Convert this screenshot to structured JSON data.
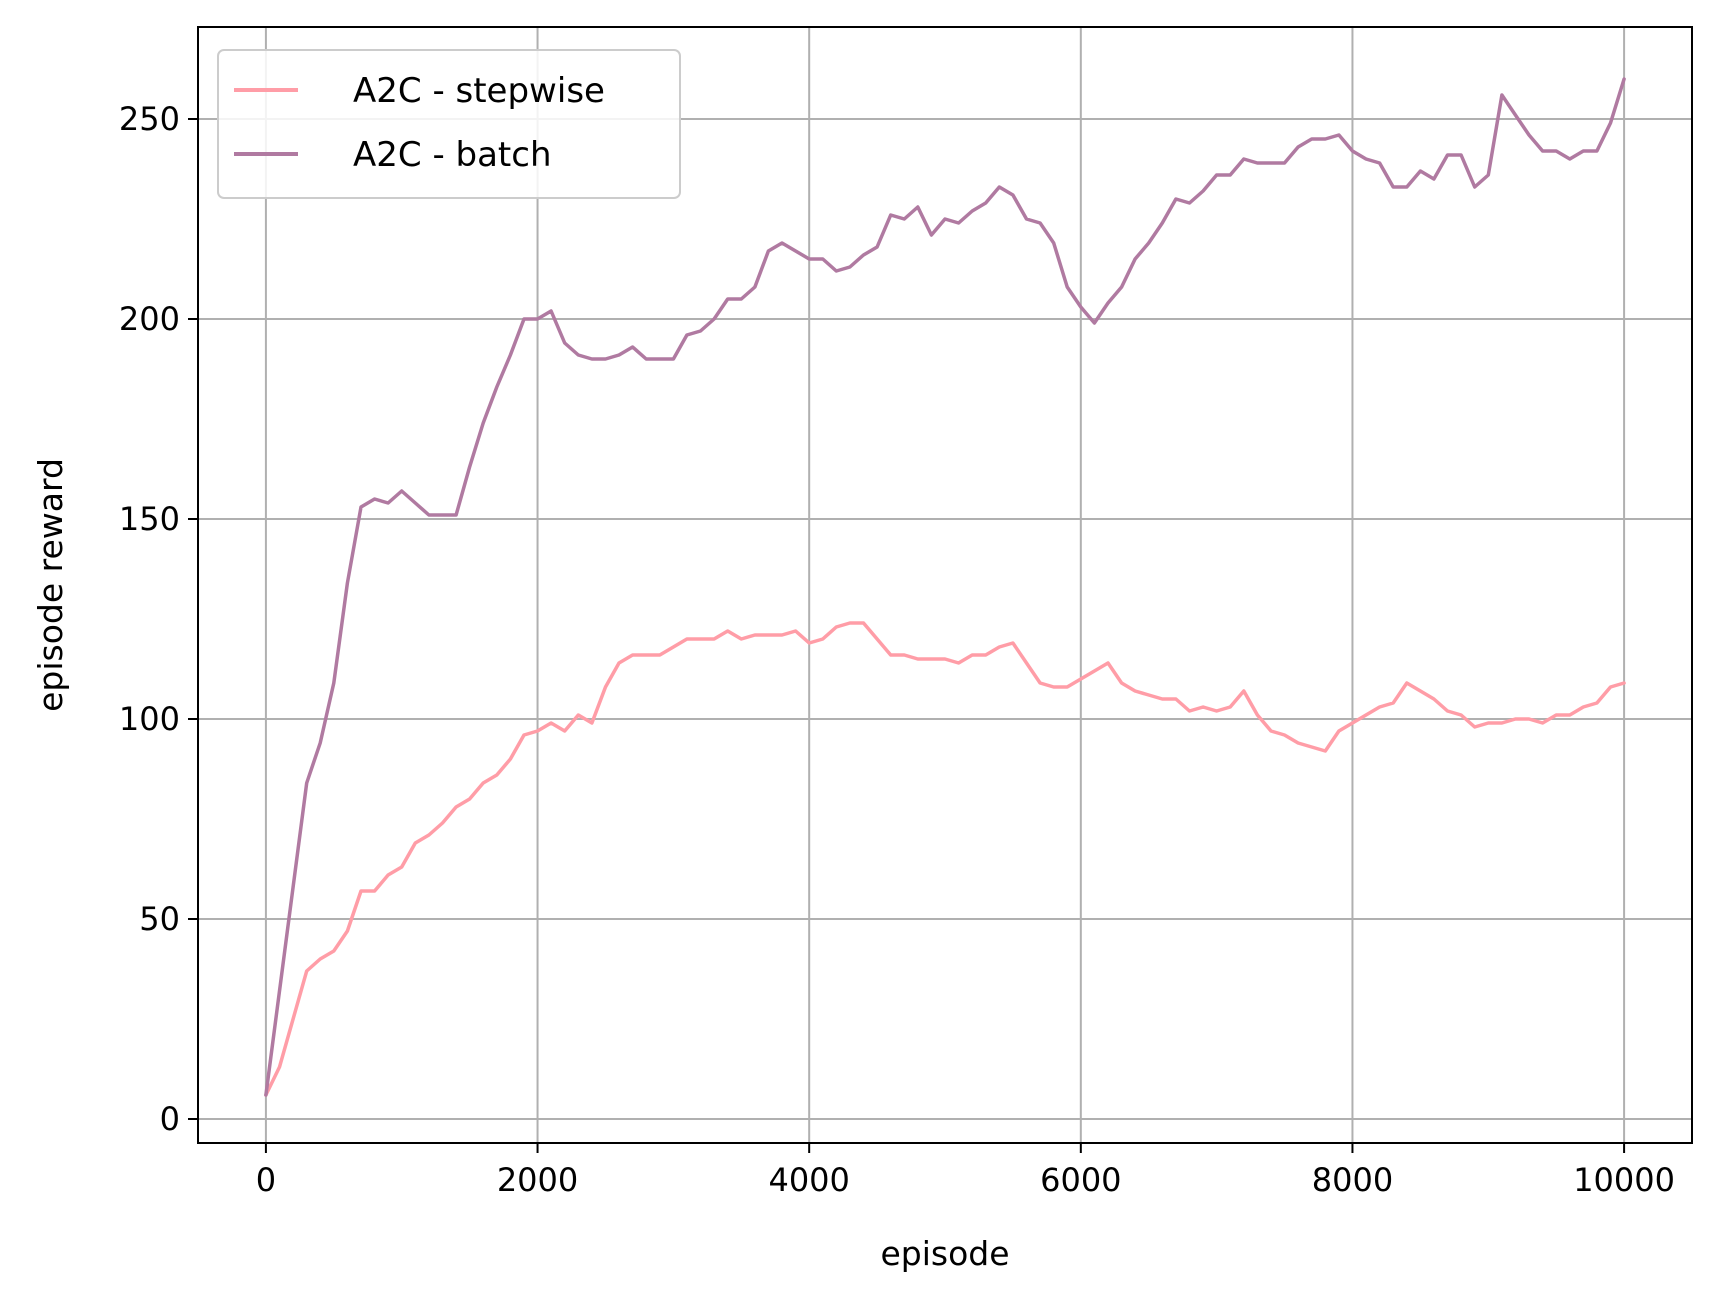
{
  "chart_data": {
    "type": "line",
    "title": "",
    "xlabel": "episode",
    "ylabel": "episode reward",
    "xlim": [
      -500,
      10500
    ],
    "ylim": [
      -6,
      273
    ],
    "xticks": [
      0,
      2000,
      4000,
      6000,
      8000,
      10000
    ],
    "yticks": [
      0,
      50,
      100,
      150,
      200,
      250
    ],
    "grid": true,
    "legend_position": "upper-left",
    "x": [
      0,
      100,
      200,
      300,
      400,
      500,
      600,
      700,
      800,
      900,
      1000,
      1100,
      1200,
      1300,
      1400,
      1500,
      1600,
      1700,
      1800,
      1900,
      2000,
      2100,
      2200,
      2300,
      2400,
      2500,
      2600,
      2700,
      2800,
      2900,
      3000,
      3100,
      3200,
      3300,
      3400,
      3500,
      3600,
      3700,
      3800,
      3900,
      4000,
      4100,
      4200,
      4300,
      4400,
      4500,
      4600,
      4700,
      4800,
      4900,
      5000,
      5100,
      5200,
      5300,
      5400,
      5500,
      5600,
      5700,
      5800,
      5900,
      6000,
      6100,
      6200,
      6300,
      6400,
      6500,
      6600,
      6700,
      6800,
      6900,
      7000,
      7100,
      7200,
      7300,
      7400,
      7500,
      7600,
      7700,
      7800,
      7900,
      8000,
      8100,
      8200,
      8300,
      8400,
      8500,
      8600,
      8700,
      8800,
      8900,
      9000,
      9100,
      9200,
      9300,
      9400,
      9500,
      9600,
      9700,
      9800,
      9900,
      10000
    ],
    "series": [
      {
        "name": "A2C - stepwise",
        "color": "#ff9da7",
        "values": [
          6,
          13,
          25,
          37,
          40,
          42,
          47,
          57,
          57,
          61,
          63,
          69,
          71,
          74,
          78,
          80,
          84,
          86,
          90,
          96,
          97,
          99,
          97,
          101,
          99,
          108,
          114,
          116,
          116,
          116,
          118,
          120,
          120,
          120,
          122,
          120,
          121,
          121,
          121,
          122,
          119,
          120,
          123,
          124,
          124,
          120,
          116,
          116,
          115,
          115,
          115,
          114,
          116,
          116,
          118,
          119,
          114,
          109,
          108,
          108,
          110,
          112,
          114,
          109,
          107,
          106,
          105,
          105,
          102,
          103,
          102,
          103,
          107,
          101,
          97,
          96,
          94,
          93,
          92,
          97,
          99,
          101,
          103,
          104,
          109,
          107,
          105,
          102,
          101,
          98,
          99,
          99,
          100,
          100,
          99,
          101,
          101,
          103,
          104,
          108,
          109
        ]
      },
      {
        "name": "A2C - batch",
        "color": "#b07aa1",
        "values": [
          6,
          32,
          58,
          84,
          94,
          109,
          134,
          153,
          155,
          154,
          157,
          154,
          151,
          151,
          151,
          163,
          174,
          183,
          191,
          200,
          200,
          202,
          194,
          191,
          190,
          190,
          191,
          193,
          190,
          190,
          190,
          196,
          197,
          200,
          205,
          205,
          208,
          217,
          219,
          217,
          215,
          215,
          212,
          213,
          216,
          218,
          226,
          225,
          228,
          221,
          225,
          224,
          227,
          229,
          233,
          231,
          225,
          224,
          219,
          208,
          203,
          199,
          204,
          208,
          215,
          219,
          224,
          230,
          229,
          232,
          236,
          236,
          240,
          239,
          239,
          239,
          243,
          245,
          245,
          246,
          242,
          240,
          239,
          233,
          233,
          237,
          235,
          241,
          241,
          233,
          236,
          256,
          251,
          246,
          242,
          242,
          240,
          242,
          242,
          249,
          260
        ]
      }
    ]
  }
}
